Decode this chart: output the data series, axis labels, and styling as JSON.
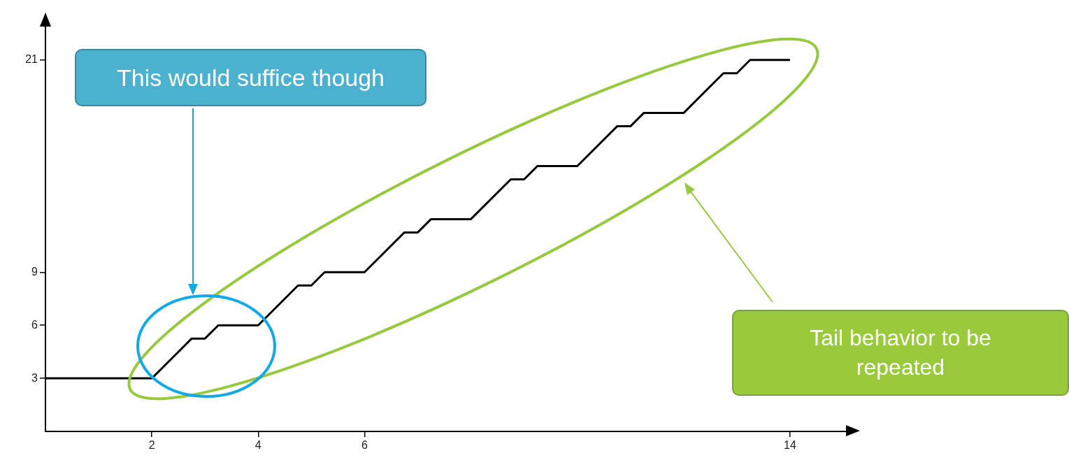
{
  "chart_data": {
    "type": "line",
    "x": [
      0,
      2,
      2.75,
      3,
      3.25,
      4,
      4.75,
      5,
      5.25,
      6,
      6.75,
      7,
      7.25,
      8,
      8.75,
      9,
      9.25,
      10,
      10.75,
      11,
      11.25,
      12,
      12.75,
      13,
      13.25,
      14
    ],
    "series": [
      {
        "color": "#000000",
        "values": [
          3,
          3,
          5.25,
          5.25,
          6,
          6,
          8.25,
          8.25,
          9,
          9,
          11.25,
          11.25,
          12,
          12,
          14.25,
          14.25,
          15,
          15,
          17.25,
          17.25,
          18,
          18,
          20.25,
          20.25,
          21,
          21
        ]
      }
    ],
    "xlim": [
      0,
      15.25
    ],
    "ylim": [
      0,
      23.4
    ],
    "xticks": [
      2,
      4,
      6,
      14
    ],
    "yticks": [
      3,
      6,
      9,
      21
    ],
    "grid": false,
    "legend": false,
    "marker": "none",
    "line_style": "solid",
    "annotations": [
      "This would suffice though",
      "Tail behavior to be repeated"
    ]
  }
}
